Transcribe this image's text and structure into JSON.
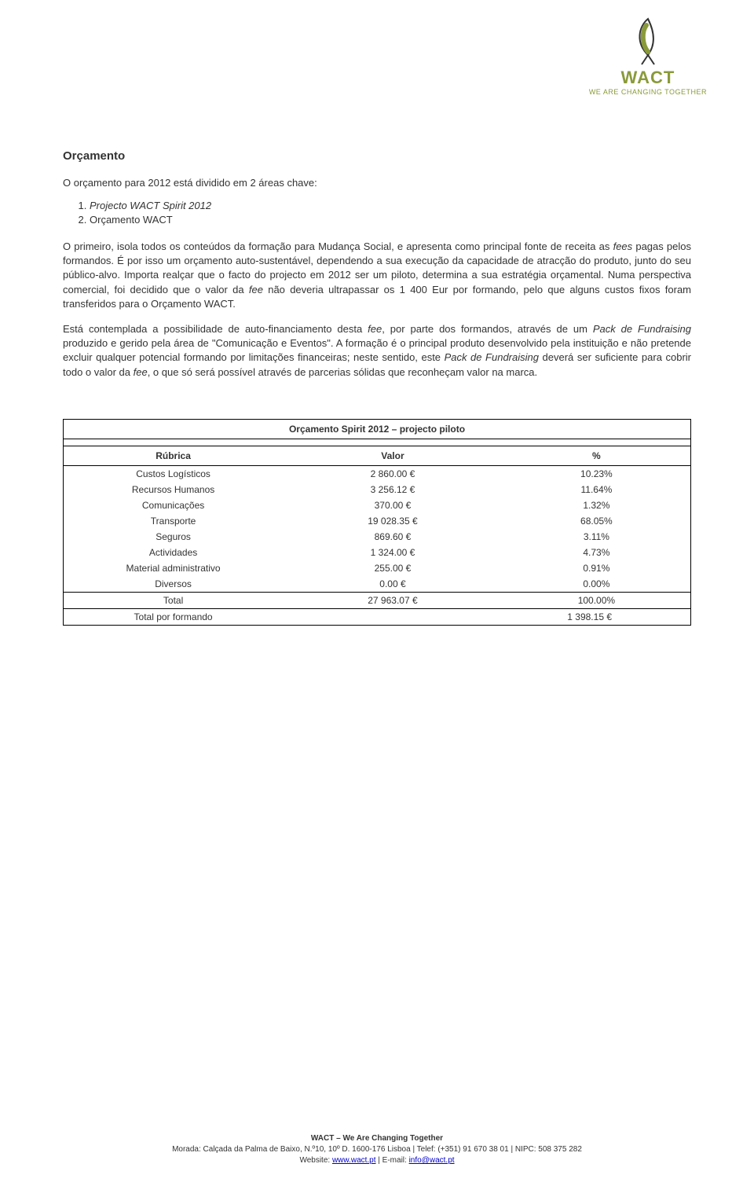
{
  "logo": {
    "name": "WACT",
    "tagline": "WE ARE CHANGING TOGETHER",
    "accent_color": "#8a9a3a",
    "outline_color": "#333333"
  },
  "heading": "Orçamento",
  "intro": "O orçamento para 2012 está dividido em 2 áreas chave:",
  "list_items": [
    "Projecto WACT Spirit 2012",
    "Orçamento WACT"
  ],
  "para1_a": "O primeiro, isola todos os conteúdos da formação para Mudança Social, e apresenta como principal fonte de receita as ",
  "para1_fees": "fees",
  "para1_b": " pagas pelos formandos. É por isso um orçamento auto-sustentável, dependendo a sua execução da capacidade de atracção do produto, junto do seu público-alvo. Importa realçar que o facto do projecto em 2012 ser um piloto, determina a sua estratégia orçamental. Numa perspectiva comercial, foi decidido que o valor da ",
  "para1_fee": "fee",
  "para1_c": " não deveria ultrapassar os 1 400 Eur por formando, pelo que alguns custos fixos foram transferidos para o Orçamento WACT.",
  "para2_a": "Está contemplada a possibilidade de auto-financiamento desta ",
  "para2_fee": "fee",
  "para2_b": ", por parte dos formandos, através de um ",
  "para2_pack1": "Pack de Fundraising",
  "para2_c": " produzido e gerido pela área de \"Comunicação e Eventos\". A formação é o principal produto desenvolvido pela instituição e não pretende excluir qualquer potencial formando por limitações financeiras; neste sentido, este ",
  "para2_pack2": "Pack de Fundraising",
  "para2_d": " deverá ser suficiente para cobrir todo o valor da ",
  "para2_fee2": "fee",
  "para2_e": ", o que só será possível através de parcerias sólidas que reconheçam valor na marca.",
  "table": {
    "title": "Orçamento Spirit 2012 – projecto piloto",
    "headers": {
      "col1": "Rúbrica",
      "col2": "Valor",
      "col3": "%"
    },
    "rows": [
      {
        "label": "Custos Logísticos",
        "value": "2 860.00 €",
        "pct": "10.23%"
      },
      {
        "label": "Recursos Humanos",
        "value": "3 256.12 €",
        "pct": "11.64%"
      },
      {
        "label": "Comunicações",
        "value": "370.00 €",
        "pct": "1.32%"
      },
      {
        "label": "Transporte",
        "value": "19 028.35 €",
        "pct": "68.05%"
      },
      {
        "label": "Seguros",
        "value": "869.60 €",
        "pct": "3.11%"
      },
      {
        "label": "Actividades",
        "value": "1 324.00 €",
        "pct": "4.73%"
      },
      {
        "label": "Material administrativo",
        "value": "255.00 €",
        "pct": "0.91%"
      },
      {
        "label": "Diversos",
        "value": "0.00 €",
        "pct": "0.00%"
      }
    ],
    "total": {
      "label": "Total",
      "value": "27 963.07 €",
      "pct": "100.00%"
    },
    "formando": {
      "label": "Total por formando",
      "value": "1 398.15 €"
    }
  },
  "footer": {
    "line1": "WACT – We Are Changing Together",
    "line2": "Morada: Calçada da Palma de Baixo, N.º10, 10º D. 1600-176 Lisboa | Telef: (+351) 91 670 38 01 | NIPC: 508 375 282",
    "website_label": "Website: ",
    "website_link": "www.wact.pt",
    "email_label": " | E-mail: ",
    "email_link": "info@wact.pt"
  }
}
